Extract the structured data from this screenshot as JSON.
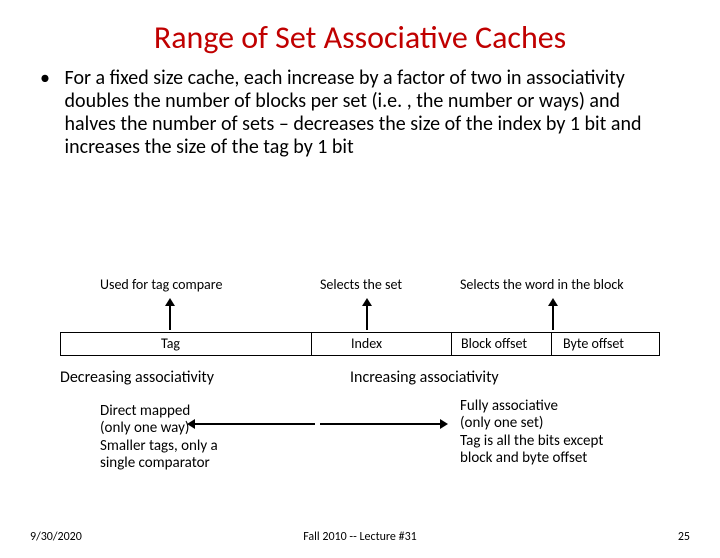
{
  "title": "Range of Set Associative Caches",
  "title_color": "#c00000",
  "bullet": "For a fixed size cache, each increase by a factor of two in associativity doubles the number of blocks per set (i.e. , the number or ways) and halves the number of sets – decreases the size of the index by 1 bit and increases the size of the tag by 1 bit",
  "top_labels": {
    "a": "Used for tag compare",
    "b": "Selects the set",
    "c": "Selects the word in the block"
  },
  "fields": {
    "tag": "Tag",
    "index": "Index",
    "block_offset": "Block offset",
    "byte_offset": "Byte offset"
  },
  "decreasing": "Decreasing associativity",
  "increasing": "Increasing associativity",
  "left_desc": {
    "l1": "Direct mapped",
    "l2": "(only one way)",
    "l3": "Smaller tags, only a",
    "l4": "single comparator"
  },
  "right_desc": {
    "l1": "Fully associative",
    "l2": "(only one set)",
    "l3": "Tag is all the bits except",
    "l4": "block and byte offset"
  },
  "footer": {
    "date": "9/30/2020",
    "center": "Fall 2010 -- Lecture #31",
    "page": "25"
  },
  "style": {
    "background": "#ffffff",
    "text_color": "#000000",
    "title_fontsize": 32,
    "body_fontsize": 20,
    "label_fontsize": 14,
    "desc_fontsize": 15,
    "footer_fontsize": 12,
    "arrow_color": "#000000",
    "box_border_color": "#000000"
  }
}
